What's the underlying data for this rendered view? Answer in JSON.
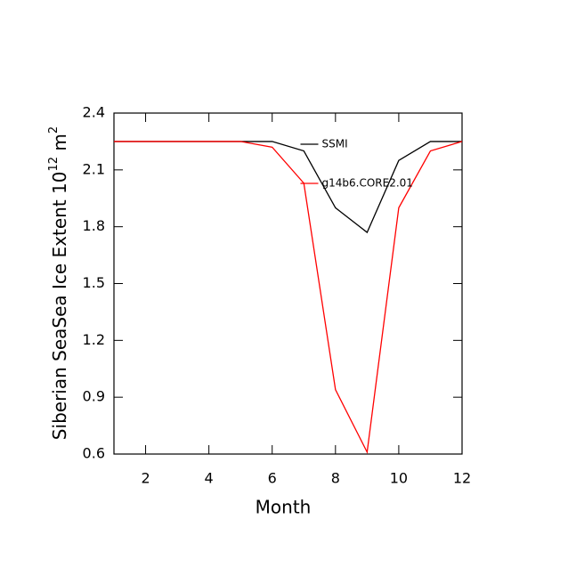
{
  "chart_data": {
    "type": "line",
    "x_label": "Month",
    "y_label": {
      "text": "Siberian SeaSea Ice Extent 10",
      "exponent": "12",
      "unit": " m",
      "unit_exponent": "2"
    },
    "x": [
      1,
      2,
      3,
      4,
      5,
      6,
      7,
      8,
      9,
      10,
      11,
      12
    ],
    "series": [
      {
        "name": "SSMI",
        "color": "#000000",
        "values": [
          2.25,
          2.25,
          2.25,
          2.25,
          2.25,
          2.25,
          2.2,
          1.9,
          1.77,
          2.15,
          2.25,
          2.25
        ]
      },
      {
        "name": "g14b6.CORE2.01",
        "color": "#ff0000",
        "values": [
          2.25,
          2.25,
          2.25,
          2.25,
          2.25,
          2.22,
          2.03,
          0.94,
          0.61,
          1.9,
          2.2,
          2.25
        ]
      }
    ],
    "xlim": [
      1,
      12
    ],
    "xticks": [
      2,
      4,
      6,
      8,
      10,
      12
    ],
    "ylim": [
      0.6,
      2.4
    ],
    "yticks": [
      0.6,
      0.9,
      1.2,
      1.5,
      1.8,
      2.1,
      2.4
    ],
    "legend_position": "upper-center"
  }
}
